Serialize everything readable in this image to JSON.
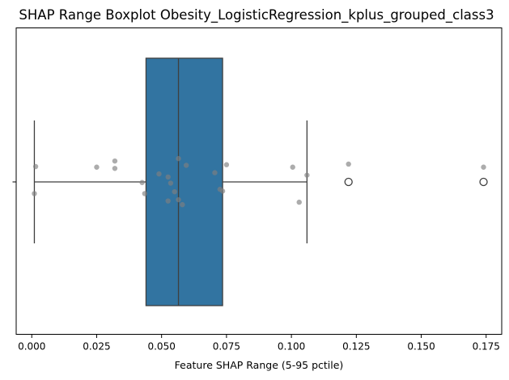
{
  "chart_data": {
    "type": "boxplot",
    "title": "SHAP Range Boxplot Obesity_LogisticRegression_kplus_grouped_class3",
    "xlabel": "Feature SHAP Range (5-95 pctile)",
    "ylabel": "",
    "xlim": [
      -0.006,
      0.181
    ],
    "x_ticks": [
      0.0,
      0.025,
      0.05,
      0.075,
      0.1,
      0.125,
      0.15,
      0.175
    ],
    "x_tick_labels": [
      "0.000",
      "0.025",
      "0.050",
      "0.075",
      "0.100",
      "0.125",
      "0.150",
      "0.175"
    ],
    "grid": false,
    "box": {
      "whisker_low": 0.001,
      "q1": 0.044,
      "median": 0.0565,
      "q3": 0.0735,
      "whisker_high": 0.106,
      "outliers": [
        0.122,
        0.174
      ],
      "color": "#3274a1",
      "line_color": "#3f3f3f"
    },
    "strip_points": {
      "color": "#808080",
      "values": [
        0.0015,
        0.001,
        0.025,
        0.032,
        0.032,
        0.0425,
        0.0435,
        0.049,
        0.0525,
        0.0535,
        0.0525,
        0.055,
        0.0565,
        0.0565,
        0.058,
        0.0595,
        0.0705,
        0.0725,
        0.0735,
        0.075,
        0.1005,
        0.103,
        0.106,
        0.122,
        0.174
      ],
      "jitter": [
        -0.25,
        0.19,
        -0.24,
        -0.34,
        -0.22,
        0.01,
        0.19,
        -0.13,
        -0.08,
        0.02,
        0.31,
        0.16,
        -0.38,
        0.29,
        0.37,
        -0.27,
        -0.15,
        0.12,
        0.15,
        -0.28,
        -0.24,
        0.33,
        -0.11,
        -0.29,
        -0.24
      ]
    }
  }
}
